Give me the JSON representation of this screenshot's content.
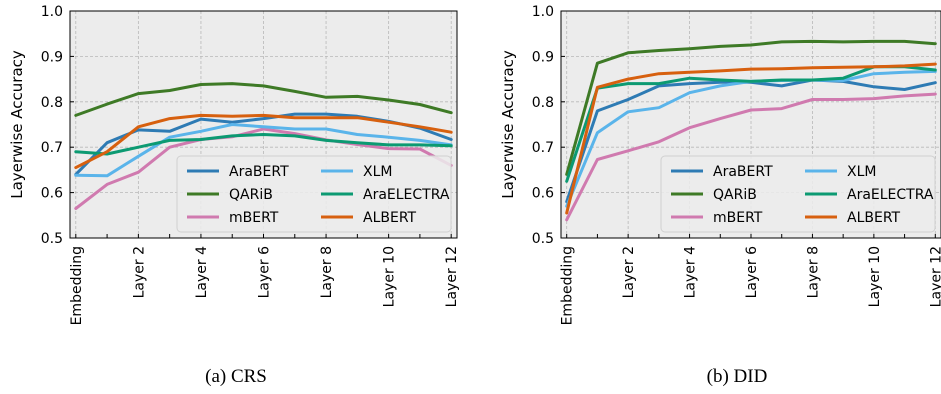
{
  "chart_data": [
    {
      "type": "line",
      "caption": "(a) CRS",
      "ylabel": "Layerwise Accuracy",
      "ylim": [
        0.5,
        1.0
      ],
      "yticks": [
        0.5,
        0.6,
        0.7,
        0.8,
        0.9,
        1.0
      ],
      "ytick_labels": [
        "0.5",
        "0.6",
        "0.7",
        "0.8",
        "0.9",
        "1.0"
      ],
      "x": [
        0,
        1,
        2,
        3,
        4,
        5,
        6,
        7,
        8,
        9,
        10,
        11,
        12
      ],
      "xticks": [
        0,
        2,
        4,
        6,
        8,
        10,
        12
      ],
      "xtick_labels": [
        "Embedding",
        "Layer 2",
        "Layer 4",
        "Layer 6",
        "Layer 8",
        "Layer 10",
        "Layer 12"
      ],
      "grid": true,
      "legend_position": "lower-right",
      "series": [
        {
          "name": "AraBERT",
          "color": "#2e7bb4",
          "values": [
            0.64,
            0.71,
            0.738,
            0.735,
            0.762,
            0.755,
            0.763,
            0.773,
            0.773,
            0.768,
            0.757,
            0.742,
            0.717
          ]
        },
        {
          "name": "QARiB",
          "color": "#3e7a26",
          "values": [
            0.77,
            0.795,
            0.818,
            0.825,
            0.838,
            0.84,
            0.835,
            0.823,
            0.81,
            0.812,
            0.804,
            0.794,
            0.776
          ]
        },
        {
          "name": "mBERT",
          "color": "#d07aaf",
          "values": [
            0.565,
            0.618,
            0.645,
            0.7,
            0.717,
            0.723,
            0.74,
            0.73,
            0.716,
            0.706,
            0.697,
            0.696,
            0.66
          ]
        },
        {
          "name": "XLM",
          "color": "#5ab4ea",
          "values": [
            0.638,
            0.637,
            0.68,
            0.722,
            0.735,
            0.75,
            0.745,
            0.74,
            0.74,
            0.728,
            0.722,
            0.715,
            0.705
          ]
        },
        {
          "name": "AraELECTRA",
          "color": "#0c9a72",
          "values": [
            0.69,
            0.685,
            0.7,
            0.715,
            0.717,
            0.725,
            0.728,
            0.725,
            0.715,
            0.71,
            0.705,
            0.705,
            0.703
          ]
        },
        {
          "name": "ALBERT",
          "color": "#d7600f",
          "values": [
            0.655,
            0.69,
            0.745,
            0.763,
            0.77,
            0.768,
            0.77,
            0.765,
            0.765,
            0.765,
            0.755,
            0.745,
            0.733
          ]
        }
      ]
    },
    {
      "type": "line",
      "caption": "(b) DID",
      "ylabel": "Layerwise Accuracy",
      "ylim": [
        0.5,
        1.0
      ],
      "yticks": [
        0.5,
        0.6,
        0.7,
        0.8,
        0.9,
        1.0
      ],
      "ytick_labels": [
        "0.5",
        "0.6",
        "0.7",
        "0.8",
        "0.9",
        "1.0"
      ],
      "x": [
        0,
        1,
        2,
        3,
        4,
        5,
        6,
        7,
        8,
        9,
        10,
        11,
        12
      ],
      "xticks": [
        0,
        2,
        4,
        6,
        8,
        10,
        12
      ],
      "xtick_labels": [
        "Embedding",
        "Layer 2",
        "Layer 4",
        "Layer 6",
        "Layer 8",
        "Layer 10",
        "Layer 12"
      ],
      "grid": true,
      "legend_position": "lower-right",
      "series": [
        {
          "name": "AraBERT",
          "color": "#2e7bb4",
          "values": [
            0.58,
            0.78,
            0.805,
            0.835,
            0.84,
            0.843,
            0.843,
            0.835,
            0.848,
            0.845,
            0.833,
            0.827,
            0.842
          ]
        },
        {
          "name": "QARiB",
          "color": "#3e7a26",
          "values": [
            0.64,
            0.885,
            0.908,
            0.913,
            0.917,
            0.922,
            0.925,
            0.932,
            0.933,
            0.932,
            0.933,
            0.933,
            0.928
          ]
        },
        {
          "name": "mBERT",
          "color": "#d07aaf",
          "values": [
            0.54,
            0.673,
            0.692,
            0.712,
            0.743,
            0.763,
            0.782,
            0.785,
            0.805,
            0.805,
            0.807,
            0.813,
            0.817
          ]
        },
        {
          "name": "XLM",
          "color": "#5ab4ea",
          "values": [
            0.57,
            0.732,
            0.778,
            0.787,
            0.82,
            0.835,
            0.845,
            0.847,
            0.848,
            0.847,
            0.862,
            0.865,
            0.867
          ]
        },
        {
          "name": "AraELECTRA",
          "color": "#0c9a72",
          "values": [
            0.625,
            0.83,
            0.84,
            0.84,
            0.852,
            0.848,
            0.845,
            0.848,
            0.848,
            0.852,
            0.877,
            0.877,
            0.87
          ]
        },
        {
          "name": "ALBERT",
          "color": "#d7600f",
          "values": [
            0.555,
            0.832,
            0.85,
            0.862,
            0.865,
            0.868,
            0.872,
            0.873,
            0.875,
            0.876,
            0.877,
            0.879,
            0.883
          ]
        }
      ]
    }
  ]
}
